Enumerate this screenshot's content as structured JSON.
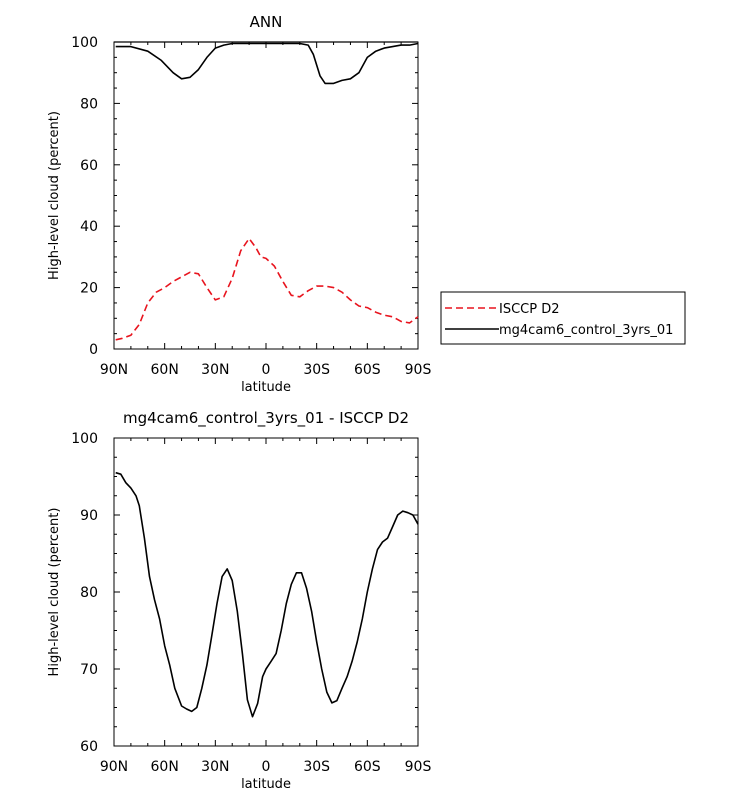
{
  "chart_data": [
    {
      "type": "line",
      "title": "ANN",
      "xlabel": "latitude",
      "ylabel": "High-level cloud (percent)",
      "xlim": [
        -90,
        90
      ],
      "ylim": [
        0,
        100
      ],
      "x_ticks": [
        {
          "value": -90,
          "label": "90N"
        },
        {
          "value": -60,
          "label": "60N"
        },
        {
          "value": -30,
          "label": "30N"
        },
        {
          "value": 0,
          "label": "0"
        },
        {
          "value": 30,
          "label": "30S"
        },
        {
          "value": 60,
          "label": "60S"
        },
        {
          "value": 90,
          "label": "90S"
        }
      ],
      "y_ticks": [
        0,
        20,
        40,
        60,
        80,
        100
      ],
      "legend": {
        "position": "right"
      },
      "series": [
        {
          "name": "ISCCP D2",
          "color": "#e8141e",
          "dash": "dashed",
          "x": [
            -89,
            -85,
            -80,
            -75,
            -70,
            -65,
            -60,
            -55,
            -50,
            -45,
            -40,
            -35,
            -30,
            -25,
            -20,
            -15,
            -10,
            -6,
            -3,
            0,
            5,
            10,
            15,
            20,
            25,
            30,
            35,
            40,
            45,
            50,
            55,
            60,
            65,
            70,
            75,
            80,
            85,
            90
          ],
          "y": [
            3,
            3.5,
            4.5,
            8,
            15,
            18.5,
            20,
            22,
            23.5,
            25,
            24.5,
            20,
            16,
            17,
            23,
            32,
            36,
            33,
            30,
            29.5,
            27,
            22,
            17.5,
            17,
            19,
            20.5,
            20.5,
            20,
            18.5,
            16,
            14,
            13.5,
            12,
            11,
            10.5,
            9,
            8.5,
            10.5
          ]
        },
        {
          "name": "mg4cam6_control_3yrs_01",
          "color": "#000000",
          "dash": "solid",
          "x": [
            -89,
            -80,
            -70,
            -62,
            -55,
            -50,
            -45,
            -40,
            -35,
            -30,
            -25,
            -20,
            -10,
            0,
            10,
            20,
            25,
            28,
            32,
            35,
            40,
            45,
            50,
            55,
            60,
            65,
            70,
            75,
            80,
            85,
            90
          ],
          "y": [
            98.5,
            98.5,
            97,
            94,
            90,
            88,
            88.5,
            91,
            95,
            98,
            99,
            99.5,
            99.5,
            99.5,
            99.5,
            99.5,
            99,
            96,
            89,
            86.5,
            86.5,
            87.5,
            88,
            90,
            95,
            97,
            98,
            98.5,
            99,
            99,
            99.5
          ]
        }
      ],
      "reference_lines": [
        {
          "y": 100,
          "style": "solid",
          "color": "#000000"
        }
      ]
    },
    {
      "type": "line",
      "title": "mg4cam6_control_3yrs_01 - ISCCP D2",
      "xlabel": "latitude",
      "ylabel": "High-level cloud (percent)",
      "xlim": [
        -90,
        90
      ],
      "ylim": [
        60,
        100
      ],
      "x_ticks": [
        {
          "value": -90,
          "label": "90N"
        },
        {
          "value": -60,
          "label": "60N"
        },
        {
          "value": -30,
          "label": "30N"
        },
        {
          "value": 0,
          "label": "0"
        },
        {
          "value": 30,
          "label": "30S"
        },
        {
          "value": 60,
          "label": "60S"
        },
        {
          "value": 90,
          "label": "90S"
        }
      ],
      "y_ticks": [
        60,
        70,
        80,
        90,
        100
      ],
      "series": [
        {
          "color": "#000000",
          "dash": "solid",
          "x": [
            -89,
            -86,
            -83,
            -80,
            -77,
            -75,
            -72,
            -69,
            -66,
            -63,
            -60,
            -57,
            -54,
            -50,
            -47,
            -44,
            -41,
            -38,
            -35,
            -32,
            -29,
            -26,
            -23,
            -20,
            -17,
            -14,
            -11,
            -8,
            -5,
            -2,
            0,
            3,
            6,
            9,
            12,
            15,
            18,
            21,
            24,
            27,
            30,
            33,
            36,
            39,
            42,
            45,
            48,
            51,
            54,
            57,
            60,
            63,
            66,
            69,
            72,
            75,
            78,
            81,
            84,
            87,
            90
          ],
          "y": [
            95.5,
            95.3,
            94.2,
            93.5,
            92.5,
            91.2,
            87,
            82,
            79,
            76.5,
            73,
            70.5,
            67.5,
            65.2,
            64.8,
            64.5,
            65,
            67.5,
            70.5,
            74.5,
            78.5,
            82,
            83,
            81.5,
            77.5,
            72,
            66,
            63.8,
            65.5,
            69,
            70,
            71,
            72,
            75,
            78.5,
            81,
            82.5,
            82.5,
            80.5,
            77.5,
            73.5,
            70,
            67,
            65.6,
            65.9,
            67.5,
            69,
            71,
            73.5,
            76.5,
            80,
            83,
            85.5,
            86.5,
            87,
            88.5,
            90,
            90.5,
            90.3,
            90,
            88.8
          ]
        }
      ]
    }
  ]
}
